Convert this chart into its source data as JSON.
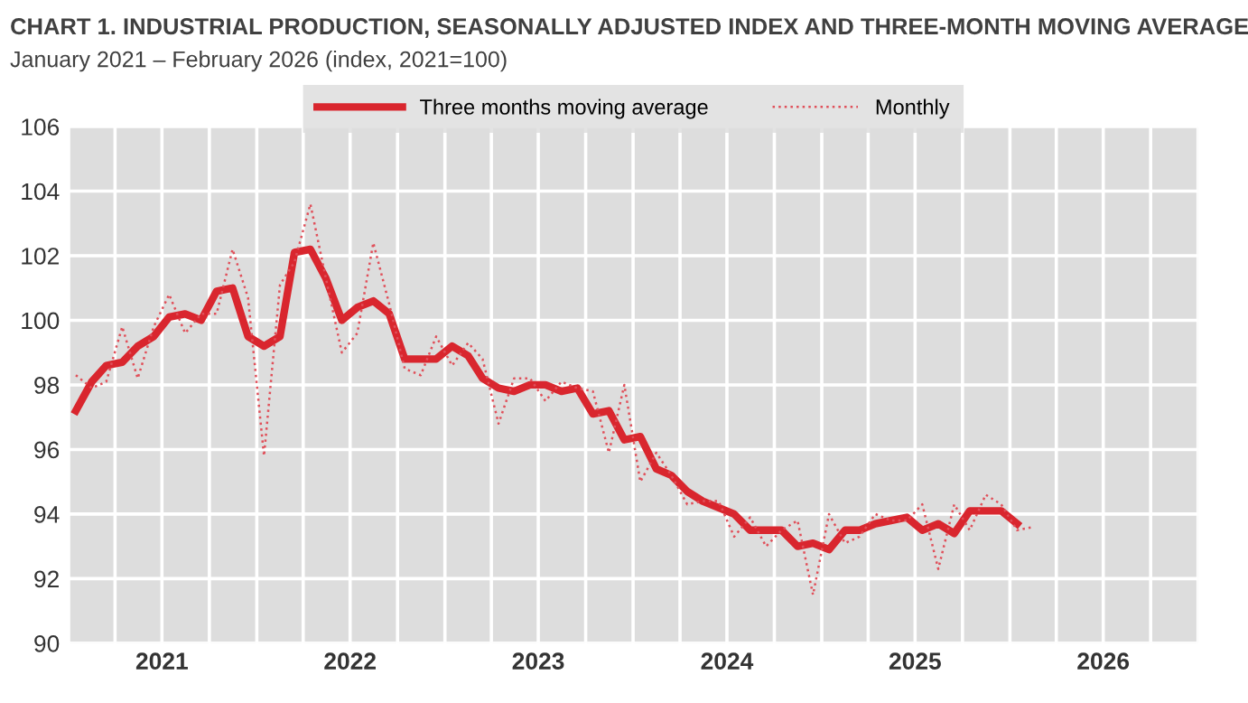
{
  "chart_data": {
    "type": "line",
    "title": "CHART 1. INDUSTRIAL PRODUCTION, SEASONALLY ADJUSTED INDEX AND THREE-MONTH MOVING AVERAGE",
    "subtitle": "January 2021 – February 2026 (index, 2021=100)",
    "x": [
      "2021-01-15",
      "2021-02-15",
      "2021-03-15",
      "2021-04-15",
      "2021-05-15",
      "2021-06-15",
      "2021-07-15",
      "2021-08-15",
      "2021-09-15",
      "2021-10-15",
      "2021-11-15",
      "2021-12-15",
      "2022-01-15",
      "2022-02-15",
      "2022-03-15",
      "2022-04-15",
      "2022-05-15",
      "2022-06-15",
      "2022-07-15",
      "2022-08-15",
      "2022-09-15",
      "2022-10-15",
      "2022-11-15",
      "2022-12-15",
      "2023-01-15",
      "2023-02-15",
      "2023-03-15",
      "2023-04-15",
      "2023-05-15",
      "2023-06-15",
      "2023-07-15",
      "2023-08-15",
      "2023-09-15",
      "2023-10-15",
      "2023-11-15",
      "2023-12-15",
      "2024-01-15",
      "2024-02-15",
      "2024-03-15",
      "2024-04-15",
      "2024-05-15",
      "2024-06-15",
      "2024-07-15",
      "2024-08-15",
      "2024-09-15",
      "2024-10-15",
      "2024-11-15",
      "2024-12-15",
      "2025-01-15",
      "2025-02-15",
      "2025-03-15",
      "2025-04-15",
      "2025-05-15",
      "2025-06-15",
      "2025-07-15",
      "2025-08-15",
      "2025-09-15",
      "2025-10-15",
      "2025-11-15",
      "2025-12-15",
      "2026-01-15",
      "2026-02-15"
    ],
    "series": [
      {
        "name": "Three months moving average",
        "color": "#d9262e",
        "line_style": "solid",
        "values": [
          97.2,
          98.1,
          98.6,
          98.7,
          99.2,
          99.5,
          100.1,
          100.2,
          100.0,
          100.9,
          101.0,
          99.5,
          99.2,
          99.5,
          102.1,
          102.2,
          101.3,
          100.0,
          100.4,
          100.6,
          100.2,
          98.8,
          98.8,
          98.8,
          99.2,
          98.9,
          98.2,
          97.9,
          97.8,
          98.0,
          98.0,
          97.8,
          97.9,
          97.1,
          97.2,
          96.3,
          96.4,
          95.4,
          95.2,
          94.7,
          94.4,
          94.2,
          94.0,
          93.5,
          93.5,
          93.5,
          93.0,
          93.1,
          92.9,
          93.5,
          93.5,
          93.7,
          93.8,
          93.9,
          93.5,
          93.7,
          93.4,
          94.1,
          94.1,
          94.1,
          93.7,
          null
        ]
      },
      {
        "name": "Monthly",
        "color": "#e0505a",
        "line_style": "dotted",
        "values": [
          98.3,
          97.9,
          98.1,
          99.8,
          98.2,
          99.8,
          100.8,
          99.6,
          100.2,
          100.2,
          102.2,
          100.7,
          95.8,
          101.1,
          101.8,
          103.6,
          101.3,
          99.0,
          99.6,
          102.4,
          100.5,
          98.5,
          98.3,
          99.5,
          98.6,
          99.3,
          98.8,
          96.8,
          98.2,
          98.2,
          97.5,
          98.1,
          97.9,
          97.8,
          95.9,
          98.0,
          95.0,
          95.9,
          95.2,
          94.3,
          94.4,
          94.4,
          93.3,
          93.9,
          93.0,
          93.5,
          93.8,
          91.5,
          94.0,
          93.1,
          93.3,
          94.0,
          93.8,
          93.8,
          94.3,
          92.3,
          94.3,
          93.5,
          94.6,
          94.3,
          93.5,
          93.6
        ]
      }
    ],
    "xlim": [
      "2021-01-01",
      "2027-01-01"
    ],
    "xticks": [
      {
        "value": "2021-01-01",
        "label": null
      },
      {
        "value": "2021-04-01",
        "label": null
      },
      {
        "value": "2021-07-01",
        "label": "2021"
      },
      {
        "value": "2021-10-01",
        "label": null
      },
      {
        "value": "2022-01-01",
        "label": null
      },
      {
        "value": "2022-04-01",
        "label": null
      },
      {
        "value": "2022-07-01",
        "label": "2022"
      },
      {
        "value": "2022-10-01",
        "label": null
      },
      {
        "value": "2023-01-01",
        "label": null
      },
      {
        "value": "2023-04-01",
        "label": null
      },
      {
        "value": "2023-07-01",
        "label": "2023"
      },
      {
        "value": "2023-10-01",
        "label": null
      },
      {
        "value": "2024-01-01",
        "label": null
      },
      {
        "value": "2024-04-01",
        "label": null
      },
      {
        "value": "2024-07-01",
        "label": "2024"
      },
      {
        "value": "2024-10-01",
        "label": null
      },
      {
        "value": "2025-01-01",
        "label": null
      },
      {
        "value": "2025-04-01",
        "label": null
      },
      {
        "value": "2025-07-01",
        "label": "2025"
      },
      {
        "value": "2025-10-01",
        "label": null
      },
      {
        "value": "2026-01-01",
        "label": null
      },
      {
        "value": "2026-04-01",
        "label": null
      },
      {
        "value": "2026-07-01",
        "label": "2026"
      },
      {
        "value": "2026-10-01",
        "label": null
      },
      {
        "value": "2027-01-01",
        "label": null
      }
    ],
    "ylim": [
      90,
      106
    ],
    "yticks": [
      90,
      92,
      94,
      96,
      98,
      100,
      102,
      104,
      106
    ],
    "grid": true,
    "legend": "top",
    "marker": "none"
  }
}
